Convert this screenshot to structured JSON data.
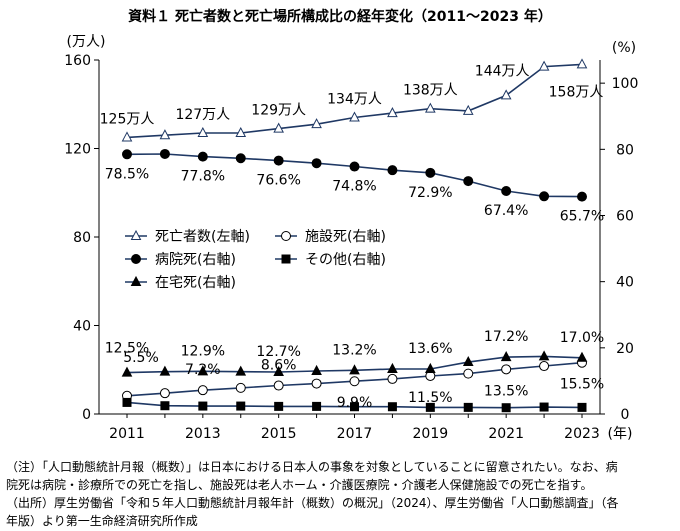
{
  "title": "資料１ 死亡者数と死亡場所構成比の経年変化（2011〜2023 年）",
  "chart_data": {
    "type": "line",
    "x": [
      2011,
      2012,
      2013,
      2014,
      2015,
      2016,
      2017,
      2018,
      2019,
      2020,
      2021,
      2022,
      2023
    ],
    "x_tick_labels": [
      "2011",
      "2013",
      "2015",
      "2017",
      "2019",
      "2021",
      "2023"
    ],
    "x_unit": "(年)",
    "left_axis": {
      "unit": "(万人)",
      "min": 0,
      "max": 160,
      "ticks": [
        "0",
        "40",
        "80",
        "120",
        "160"
      ]
    },
    "right_axis": {
      "unit": "(%)",
      "min": 0,
      "max": 107,
      "ticks": [
        "0",
        "20",
        "40",
        "60",
        "80",
        "100"
      ]
    },
    "series": [
      {
        "name": "死亡者数(左軸)",
        "axis": "left",
        "marker": "triangle-open",
        "values": [
          125,
          126,
          127,
          127,
          129,
          131,
          134,
          136,
          138,
          137,
          144,
          157,
          158
        ]
      },
      {
        "name": "施設死(右軸)",
        "axis": "right",
        "marker": "circle-open",
        "values": [
          5.5,
          6.3,
          7.2,
          7.9,
          8.6,
          9.2,
          9.9,
          10.6,
          11.5,
          12.2,
          13.5,
          14.5,
          15.5
        ]
      },
      {
        "name": "病院死(右軸)",
        "axis": "right",
        "marker": "circle",
        "values": [
          78.5,
          78.6,
          77.8,
          77.3,
          76.6,
          75.8,
          74.8,
          73.7,
          72.9,
          70.4,
          67.4,
          65.8,
          65.7
        ]
      },
      {
        "name": "その他(右軸)",
        "axis": "right",
        "marker": "square",
        "values": [
          3.5,
          2.5,
          2.4,
          2.4,
          2.3,
          2.3,
          2.2,
          2.2,
          2.0,
          2.0,
          1.9,
          2.1,
          2.0
        ]
      },
      {
        "name": "在宅死(右軸)",
        "axis": "right",
        "marker": "triangle",
        "values": [
          12.5,
          12.8,
          12.9,
          12.8,
          12.7,
          13.0,
          13.2,
          13.6,
          13.6,
          15.7,
          17.2,
          17.4,
          17.0
        ]
      }
    ],
    "data_labels": {
      "deaths": [
        {
          "x": 2011,
          "text": "125万人"
        },
        {
          "x": 2013,
          "text": "127万人"
        },
        {
          "x": 2015,
          "text": "129万人"
        },
        {
          "x": 2017,
          "text": "134万人"
        },
        {
          "x": 2019,
          "text": "138万人"
        },
        {
          "x": 2021,
          "text": "144万人"
        },
        {
          "x": 2023,
          "text": "158万人"
        }
      ],
      "hospital": [
        {
          "x": 2011,
          "text": "78.5%"
        },
        {
          "x": 2013,
          "text": "77.8%"
        },
        {
          "x": 2015,
          "text": "76.6%"
        },
        {
          "x": 2017,
          "text": "74.8%"
        },
        {
          "x": 2019,
          "text": "72.9%"
        },
        {
          "x": 2021,
          "text": "67.4%"
        },
        {
          "x": 2023,
          "text": "65.7%"
        }
      ],
      "home": [
        {
          "x": 2011,
          "text": "12.5%"
        },
        {
          "x": 2013,
          "text": "12.9%"
        },
        {
          "x": 2015,
          "text": "12.7%"
        },
        {
          "x": 2017,
          "text": "13.2%"
        },
        {
          "x": 2019,
          "text": "13.6%"
        },
        {
          "x": 2021,
          "text": "17.2%"
        },
        {
          "x": 2023,
          "text": "17.0%"
        }
      ],
      "facility": [
        {
          "x": 2011,
          "text": "5.5%"
        },
        {
          "x": 2013,
          "text": "7.2%"
        },
        {
          "x": 2015,
          "text": "8.6%"
        },
        {
          "x": 2017,
          "text": "9.9%"
        },
        {
          "x": 2019,
          "text": "11.5%"
        },
        {
          "x": 2021,
          "text": "13.5%"
        },
        {
          "x": 2023,
          "text": "15.5%"
        }
      ]
    },
    "legend_placement": "middle-left",
    "grid": false
  },
  "notes": [
    "（注）「人口動態統計月報（概数）」は日本における日本人の事象を対象としていることに留意されたい。なお、病",
    "院死は病院・診療所での死亡を指し、施設死は老人ホーム・介護医療院・介護老人保健施設での死亡を指す。",
    "（出所）厚生労働省「令和５年人口動態統計月報年計（概数）の概況」（2024）、厚生労働省「人口動態調査」（各",
    "年版）より第一生命経済研究所作成"
  ],
  "colors": {
    "line": "#1f3864",
    "marker": "#000000",
    "axis": "#000000"
  }
}
